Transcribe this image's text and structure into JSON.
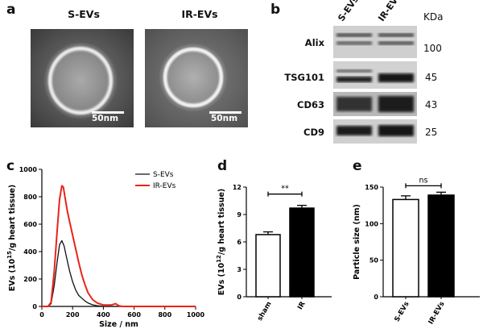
{
  "panels": {
    "a": {
      "letter": "a",
      "titles": [
        "S-EVs",
        "IR-EVs"
      ],
      "scalebar": "50nm"
    },
    "b": {
      "letter": "b",
      "lanes": [
        "S-EVs",
        "IR-EVs"
      ],
      "unit_header": "KDa",
      "rows": [
        {
          "label": "Alix",
          "kda": "100"
        },
        {
          "label": "TSG101",
          "kda": "45"
        },
        {
          "label": "CD63",
          "kda": "43"
        },
        {
          "label": "CD9",
          "kda": "25"
        }
      ]
    },
    "c": {
      "letter": "c"
    },
    "d": {
      "letter": "d"
    },
    "e": {
      "letter": "e"
    }
  },
  "chart_data": [
    {
      "panel": "c",
      "type": "line",
      "xlabel": "Size / nm",
      "ylabel": "EVs (10^15/g heart tissue)",
      "ylabel_base": "EVs (10",
      "ylabel_exp": "15",
      "ylabel_rest": "/g heart tissue)",
      "xlim": [
        0,
        1000
      ],
      "ylim": [
        0,
        1000
      ],
      "xticks": [
        0,
        200,
        400,
        600,
        800,
        1000
      ],
      "yticks": [
        0,
        200,
        400,
        600,
        800,
        1000
      ],
      "series": [
        {
          "name": "S-EVs",
          "color": "#111111",
          "x": [
            0,
            40,
            60,
            80,
            100,
            115,
            130,
            145,
            160,
            180,
            200,
            220,
            240,
            260,
            280,
            300,
            330,
            360,
            400,
            450,
            500,
            1000
          ],
          "y": [
            0,
            0,
            20,
            150,
            330,
            450,
            480,
            440,
            360,
            260,
            180,
            120,
            80,
            60,
            40,
            25,
            12,
            5,
            0,
            0,
            0,
            0
          ]
        },
        {
          "name": "IR-EVs",
          "color": "#e8241a",
          "x": [
            0,
            40,
            60,
            80,
            100,
            115,
            130,
            140,
            150,
            165,
            180,
            200,
            220,
            240,
            260,
            280,
            300,
            330,
            360,
            400,
            450,
            480,
            500,
            520,
            1000
          ],
          "y": [
            0,
            0,
            30,
            250,
            560,
            780,
            880,
            870,
            800,
            700,
            620,
            520,
            420,
            320,
            230,
            160,
            100,
            50,
            25,
            10,
            10,
            20,
            5,
            0,
            0
          ]
        }
      ]
    },
    {
      "panel": "d",
      "type": "bar",
      "categories": [
        "sham",
        "IR"
      ],
      "values": [
        6.8,
        9.7
      ],
      "errors": [
        0.3,
        0.3
      ],
      "fills": [
        "#ffffff",
        "#000000"
      ],
      "ylabel": "EVs (10^12/g heart tissue)",
      "ylabel_base": "EVs (10",
      "ylabel_exp": "12",
      "ylabel_rest": "/g heart tissue)",
      "ylim": [
        0,
        12
      ],
      "yticks": [
        0,
        3,
        6,
        9,
        12
      ],
      "significance": "**"
    },
    {
      "panel": "e",
      "type": "bar",
      "categories": [
        "S-EVs",
        "IR-EVs"
      ],
      "values": [
        133,
        139
      ],
      "errors": [
        5,
        4
      ],
      "fills": [
        "#ffffff",
        "#000000"
      ],
      "ylabel": "Particle size (nm)",
      "ylim": [
        0,
        150
      ],
      "yticks": [
        0,
        50,
        100,
        150
      ],
      "significance": "ns"
    }
  ]
}
